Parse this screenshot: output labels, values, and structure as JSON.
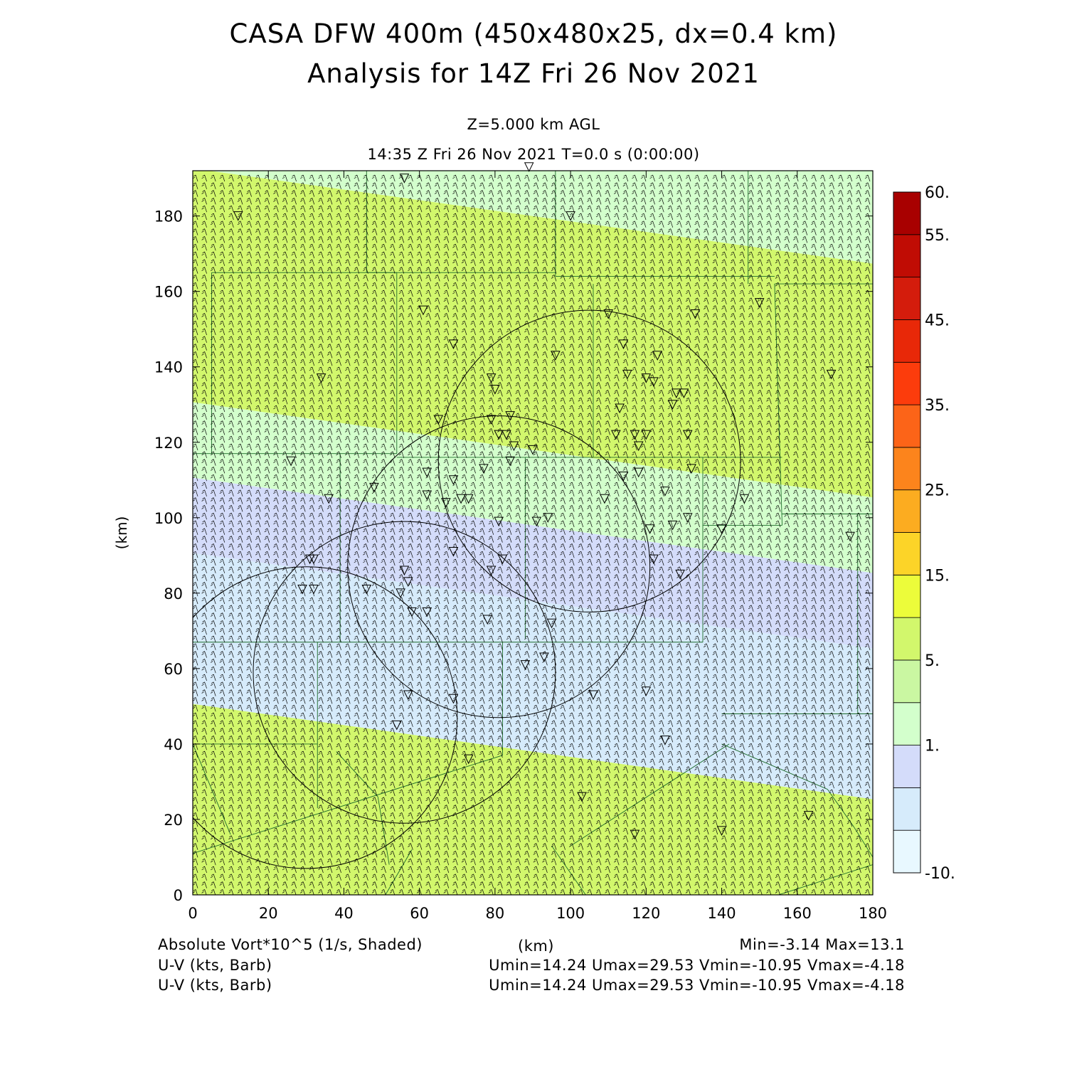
{
  "header": {
    "title_line1": "CASA DFW 400m (450x480x25, dx=0.4 km)",
    "title_line2": "Analysis for 14Z Fri 26 Nov 2021",
    "level_label": "Z=5.000 km AGL",
    "time_label": "14:35 Z Fri 26 Nov 2021    T=0.0 s (0:00:00)"
  },
  "footer": {
    "field_label": "Absolute Vort*10^5 (1/s, Shaded)",
    "x_unit_label": "(km)",
    "minmax_label": "Min=-3.14 Max=13.1",
    "barb_label_1": "U-V (kts, Barb)",
    "barb_stats_1": "Umin=14.24 Umax=29.53 Vmin=-10.95 Vmax=-4.18",
    "barb_label_2": "U-V (kts, Barb)",
    "barb_stats_2": "Umin=14.24 Umax=29.53 Vmin=-10.95 Vmax=-4.18"
  },
  "chart_data": {
    "type": "heatmap",
    "title": "CASA DFW 400m (450x480x25, dx=0.4 km)",
    "subtitle": "Analysis for 14Z Fri 26 Nov 2021",
    "xlabel": "(km)",
    "ylabel": "(km)",
    "xlim": [
      0,
      180
    ],
    "ylim": [
      0,
      192
    ],
    "x_ticks": [
      0,
      20,
      40,
      60,
      80,
      100,
      120,
      140,
      160,
      180
    ],
    "y_ticks": [
      0,
      20,
      40,
      60,
      80,
      100,
      120,
      140,
      160,
      180
    ],
    "x_tick_labels": [
      "0",
      "20",
      "40",
      "60",
      "80",
      "100",
      "120",
      "140",
      "160",
      "180"
    ],
    "y_tick_labels": [
      "0",
      "20",
      "40",
      "60",
      "80",
      "100",
      "120",
      "140",
      "160",
      "180"
    ],
    "field": "Absolute Vorticity x10^5 (1/s)",
    "min": -3.14,
    "max": 13.1,
    "colorbar": {
      "levels": [
        -10,
        -5,
        0,
        1,
        3,
        5,
        10,
        15,
        20,
        25,
        30,
        35,
        40,
        45,
        50,
        55,
        60
      ],
      "labels": [
        "-10.",
        "1.",
        "5.",
        "15.",
        "25.",
        "35.",
        "45.",
        "55.",
        "60."
      ],
      "label_values": [
        -10,
        1,
        5,
        15,
        25,
        35,
        45,
        55,
        60
      ],
      "colors": [
        "#e8f8ff",
        "#d6ebfb",
        "#d4dcfa",
        "#d3ffcc",
        "#caf7a2",
        "#d2f76c",
        "#ecfc3a",
        "#fcd428",
        "#fcac20",
        "#fc841c",
        "#fc6418",
        "#fc3c0c",
        "#e82808",
        "#d41c0c",
        "#c00c04",
        "#a80000"
      ]
    },
    "bands": [
      {
        "x0": 0,
        "y0": 0,
        "x1": 180,
        "y1": 12,
        "value": 7.5
      },
      {
        "x0": 0,
        "y0": 12,
        "x1": 180,
        "y1": 38,
        "value": 6.5
      },
      {
        "x0": 0,
        "y0": 38,
        "x1": 180,
        "y1": 78,
        "value": -2.0
      },
      {
        "x0": 0,
        "y0": 78,
        "x1": 180,
        "y1": 98,
        "value": 0.5
      },
      {
        "x0": 0,
        "y0": 98,
        "x1": 180,
        "y1": 118,
        "value": 2.0
      },
      {
        "x0": 0,
        "y0": 118,
        "x1": 180,
        "y1": 160,
        "value": 9.0
      },
      {
        "x0": 0,
        "y0": 160,
        "x1": 180,
        "y1": 180,
        "value": 6.0
      },
      {
        "x0": 0,
        "y0": 180,
        "x1": 180,
        "y1": 192,
        "value": 1.5
      }
    ],
    "wind": {
      "units": "kts",
      "u_range": [
        14.24,
        29.53
      ],
      "v_range": [
        -10.95,
        -4.18
      ]
    },
    "radar_rings": [
      {
        "cx": 30,
        "cy": 47,
        "r": 40
      },
      {
        "cx": 56,
        "cy": 59,
        "r": 40
      },
      {
        "cx": 81,
        "cy": 87,
        "r": 40
      },
      {
        "cx": 105,
        "cy": 115,
        "r": 40
      }
    ],
    "stations": [
      [
        56,
        190
      ],
      [
        89,
        193
      ],
      [
        12,
        180
      ],
      [
        100,
        180
      ],
      [
        61,
        155
      ],
      [
        69,
        146
      ],
      [
        96,
        143
      ],
      [
        110,
        154
      ],
      [
        114,
        146
      ],
      [
        123,
        143
      ],
      [
        133,
        154
      ],
      [
        34,
        137
      ],
      [
        79,
        137
      ],
      [
        80,
        134
      ],
      [
        115,
        138
      ],
      [
        120,
        137
      ],
      [
        122,
        136
      ],
      [
        128,
        133
      ],
      [
        130,
        133
      ],
      [
        169,
        138
      ],
      [
        150,
        157
      ],
      [
        65,
        126
      ],
      [
        79,
        126
      ],
      [
        84,
        127
      ],
      [
        113,
        129
      ],
      [
        127,
        130
      ],
      [
        131,
        122
      ],
      [
        112,
        122
      ],
      [
        117,
        122
      ],
      [
        120,
        122
      ],
      [
        81,
        122
      ],
      [
        83,
        122
      ],
      [
        85,
        119
      ],
      [
        90,
        118
      ],
      [
        118,
        119
      ],
      [
        26,
        115
      ],
      [
        62,
        112
      ],
      [
        69,
        110
      ],
      [
        77,
        113
      ],
      [
        84,
        115
      ],
      [
        118,
        112
      ],
      [
        114,
        111
      ],
      [
        132,
        113
      ],
      [
        36,
        105
      ],
      [
        48,
        108
      ],
      [
        62,
        106
      ],
      [
        67,
        104
      ],
      [
        71,
        105
      ],
      [
        73,
        105
      ],
      [
        109,
        105
      ],
      [
        125,
        107
      ],
      [
        146,
        105
      ],
      [
        81,
        99
      ],
      [
        91,
        99
      ],
      [
        94,
        100
      ],
      [
        121,
        97
      ],
      [
        127,
        98
      ],
      [
        131,
        100
      ],
      [
        140,
        97
      ],
      [
        174,
        95
      ],
      [
        31,
        89
      ],
      [
        32,
        89
      ],
      [
        69,
        91
      ],
      [
        82,
        89
      ],
      [
        122,
        89
      ],
      [
        79,
        86
      ],
      [
        56,
        86
      ],
      [
        57,
        83
      ],
      [
        46,
        81
      ],
      [
        29,
        81
      ],
      [
        32,
        81
      ],
      [
        55,
        80
      ],
      [
        58,
        75
      ],
      [
        62,
        75
      ],
      [
        78,
        73
      ],
      [
        95,
        72
      ],
      [
        129,
        85
      ],
      [
        93,
        63
      ],
      [
        88,
        61
      ],
      [
        57,
        53
      ],
      [
        69,
        52
      ],
      [
        106,
        53
      ],
      [
        120,
        54
      ],
      [
        54,
        45
      ],
      [
        125,
        41
      ],
      [
        73,
        36
      ],
      [
        103,
        26
      ],
      [
        117,
        16
      ],
      [
        140,
        17
      ],
      [
        163,
        21
      ]
    ]
  }
}
